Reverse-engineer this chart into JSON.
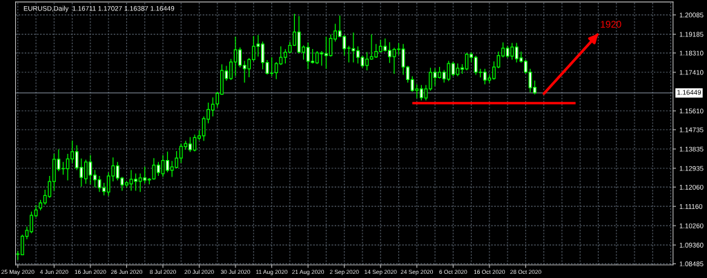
{
  "chart_data": {
    "type": "candlestick",
    "title": "EURUSD,Daily  1.16711 1.17027 1.16387 1.16449",
    "categories": [
      "25 May 2020",
      null,
      null,
      null,
      null,
      null,
      null,
      null,
      "4 Jun 2020",
      null,
      null,
      null,
      null,
      null,
      null,
      null,
      "16 Jun 2020",
      null,
      null,
      null,
      null,
      null,
      null,
      null,
      "26 Jun 2020",
      null,
      null,
      null,
      null,
      null,
      null,
      null,
      "8 Jul 2020",
      null,
      null,
      null,
      null,
      null,
      null,
      null,
      "20 Jul 2020",
      null,
      null,
      null,
      null,
      null,
      null,
      null,
      "30 Jul 2020",
      null,
      null,
      null,
      null,
      null,
      null,
      null,
      "11 Aug 2020",
      null,
      null,
      null,
      null,
      null,
      null,
      null,
      "21 Aug 2020",
      null,
      null,
      null,
      null,
      null,
      null,
      null,
      "2 Sep 2020",
      null,
      null,
      null,
      null,
      null,
      null,
      null,
      "14 Sep 2020",
      null,
      null,
      null,
      null,
      null,
      null,
      null,
      "24 Sep 2020",
      null,
      null,
      null,
      null,
      null,
      null,
      null,
      "6 Oct 2020",
      null,
      null,
      null,
      null,
      null,
      null,
      null,
      "16 Oct 2020",
      null,
      null,
      null,
      null,
      null,
      null,
      null,
      "28 Oct 2020",
      null,
      null,
      null,
      null,
      null,
      null,
      null,
      null,
      null,
      null,
      null,
      null,
      null,
      null,
      null,
      null,
      null,
      null,
      null,
      null,
      null,
      null,
      null,
      null,
      null,
      null,
      null,
      null,
      null,
      null,
      null,
      null
    ],
    "color": "#00ff00",
    "ohlc": [
      [
        1.0894,
        1.0909,
        1.0866,
        1.0893
      ],
      [
        1.089,
        1.0984,
        1.0888,
        1.0977
      ],
      [
        1.0976,
        1.1022,
        1.0963,
        1.1004
      ],
      [
        1.0998,
        1.1092,
        1.099,
        1.1074
      ],
      [
        1.1072,
        1.1122,
        1.1066,
        1.1099
      ],
      [
        1.1108,
        1.1146,
        1.1097,
        1.1132
      ],
      [
        1.1132,
        1.1194,
        1.1124,
        1.1167
      ],
      [
        1.1162,
        1.1258,
        1.1156,
        1.1232
      ],
      [
        1.1232,
        1.1361,
        1.1189,
        1.1336
      ],
      [
        1.1336,
        1.1382,
        1.128,
        1.1289
      ],
      [
        1.1292,
        1.1323,
        1.1264,
        1.1291
      ],
      [
        1.1291,
        1.1361,
        1.1237,
        1.1337
      ],
      [
        1.1337,
        1.1423,
        1.1318,
        1.1371
      ],
      [
        1.1371,
        1.1401,
        1.1285,
        1.1296
      ],
      [
        1.1298,
        1.1339,
        1.1208,
        1.1251
      ],
      [
        1.1245,
        1.1334,
        1.1221,
        1.1323
      ],
      [
        1.1323,
        1.1355,
        1.1219,
        1.1262
      ],
      [
        1.1262,
        1.1285,
        1.1205,
        1.124
      ],
      [
        1.124,
        1.1258,
        1.1183,
        1.1203
      ],
      [
        1.1203,
        1.1226,
        1.1167,
        1.1185
      ],
      [
        1.1183,
        1.1274,
        1.1165,
        1.1258
      ],
      [
        1.1258,
        1.1344,
        1.1232,
        1.1305
      ],
      [
        1.1305,
        1.1323,
        1.1237,
        1.1248
      ],
      [
        1.1248,
        1.1253,
        1.1189,
        1.1216
      ],
      [
        1.1216,
        1.1234,
        1.1205,
        1.1226
      ],
      [
        1.1221,
        1.1285,
        1.1189,
        1.1242
      ],
      [
        1.1242,
        1.1269,
        1.1189,
        1.1233
      ],
      [
        1.1233,
        1.1269,
        1.1183,
        1.1249
      ],
      [
        1.1249,
        1.1301,
        1.1223,
        1.1238
      ],
      [
        1.1239,
        1.1248,
        1.1219,
        1.1243
      ],
      [
        1.1244,
        1.1341,
        1.124,
        1.1308
      ],
      [
        1.1308,
        1.1323,
        1.1258,
        1.1274
      ],
      [
        1.1268,
        1.1355,
        1.1253,
        1.133
      ],
      [
        1.133,
        1.1371,
        1.1275,
        1.1284
      ],
      [
        1.1284,
        1.1328,
        1.1253,
        1.13
      ],
      [
        1.1298,
        1.1374,
        1.1294,
        1.1341
      ],
      [
        1.1341,
        1.1409,
        1.1318,
        1.1396
      ],
      [
        1.1394,
        1.1421,
        1.138,
        1.1409
      ],
      [
        1.1407,
        1.1439,
        1.137,
        1.138
      ],
      [
        1.1378,
        1.145,
        1.1372,
        1.1437
      ],
      [
        1.1434,
        1.1471,
        1.1424,
        1.1445
      ],
      [
        1.1445,
        1.1535,
        1.1421,
        1.1525
      ],
      [
        1.1522,
        1.16,
        1.1503,
        1.1568
      ],
      [
        1.1565,
        1.1624,
        1.1535,
        1.1592
      ],
      [
        1.1594,
        1.165,
        1.1578,
        1.1643
      ],
      [
        1.1639,
        1.1778,
        1.1637,
        1.175
      ],
      [
        1.1747,
        1.1771,
        1.1702,
        1.1712
      ],
      [
        1.1712,
        1.1803,
        1.1705,
        1.1789
      ],
      [
        1.1789,
        1.1907,
        1.1723,
        1.1846
      ],
      [
        1.1846,
        1.1857,
        1.1764,
        1.1774
      ],
      [
        1.1774,
        1.1794,
        1.1693,
        1.1758
      ],
      [
        1.1757,
        1.1808,
        1.1718,
        1.18
      ],
      [
        1.18,
        1.191,
        1.1792,
        1.1862
      ],
      [
        1.1873,
        1.1915,
        1.1814,
        1.1862
      ],
      [
        1.1873,
        1.1884,
        1.1755,
        1.1787
      ],
      [
        1.1787,
        1.1798,
        1.1731,
        1.1736
      ],
      [
        1.1737,
        1.1811,
        1.1723,
        1.1736
      ],
      [
        1.1739,
        1.1789,
        1.1709,
        1.1782
      ],
      [
        1.178,
        1.1862,
        1.1775,
        1.1811
      ],
      [
        1.1811,
        1.1849,
        1.1782,
        1.1835
      ],
      [
        1.1835,
        1.1884,
        1.1832,
        1.1867
      ],
      [
        1.1867,
        1.2014,
        1.1865,
        1.1929
      ],
      [
        1.1929,
        1.2003,
        1.183,
        1.1835
      ],
      [
        1.1835,
        1.1867,
        1.18,
        1.1859
      ],
      [
        1.1857,
        1.188,
        1.1755,
        1.1792
      ],
      [
        1.1792,
        1.185,
        1.1782,
        1.1787
      ],
      [
        1.1785,
        1.184,
        1.178,
        1.1832
      ],
      [
        1.1832,
        1.184,
        1.1772,
        1.1827
      ],
      [
        1.1828,
        1.1907,
        1.1757,
        1.1819
      ],
      [
        1.1819,
        1.1918,
        1.1814,
        1.1899
      ],
      [
        1.1896,
        1.1967,
        1.1884,
        1.1934
      ],
      [
        1.1934,
        1.2006,
        1.1905,
        1.1908
      ],
      [
        1.1908,
        1.1915,
        1.1819,
        1.1851
      ],
      [
        1.1854,
        1.1864,
        1.1787,
        1.1853
      ],
      [
        1.1851,
        1.1926,
        1.1787,
        1.1841
      ],
      [
        1.1841,
        1.1862,
        1.1782,
        1.1811
      ],
      [
        1.1811,
        1.1818,
        1.1762,
        1.1771
      ],
      [
        1.1773,
        1.1835,
        1.175,
        1.1803
      ],
      [
        1.1803,
        1.1918,
        1.18,
        1.1814
      ],
      [
        1.1812,
        1.1873,
        1.1809,
        1.1838
      ],
      [
        1.1838,
        1.1892,
        1.1835,
        1.1862
      ],
      [
        1.1862,
        1.1899,
        1.1838,
        1.1843
      ],
      [
        1.1843,
        1.1881,
        1.1785,
        1.1814
      ],
      [
        1.1814,
        1.1855,
        1.1734,
        1.1848
      ],
      [
        1.1848,
        1.1877,
        1.1822,
        1.1849
      ],
      [
        1.1849,
        1.1873,
        1.1729,
        1.1766
      ],
      [
        1.1766,
        1.1771,
        1.1693,
        1.1707
      ],
      [
        1.1707,
        1.1723,
        1.165,
        1.1656
      ],
      [
        1.1656,
        1.1685,
        1.1621,
        1.1664
      ],
      [
        1.1664,
        1.1682,
        1.161,
        1.1623
      ],
      [
        1.1621,
        1.1682,
        1.161,
        1.1664
      ],
      [
        1.1664,
        1.1762,
        1.1655,
        1.1741
      ],
      [
        1.1741,
        1.176,
        1.1678,
        1.1717
      ],
      [
        1.1717,
        1.1766,
        1.1712,
        1.1742
      ],
      [
        1.1742,
        1.1752,
        1.1693,
        1.171
      ],
      [
        1.1709,
        1.1794,
        1.17,
        1.1782
      ],
      [
        1.1782,
        1.179,
        1.1723,
        1.1731
      ],
      [
        1.1731,
        1.1782,
        1.1723,
        1.176
      ],
      [
        1.1762,
        1.1779,
        1.1734,
        1.1755
      ],
      [
        1.1757,
        1.1832,
        1.175,
        1.1825
      ],
      [
        1.1825,
        1.1835,
        1.1787,
        1.1811
      ],
      [
        1.1811,
        1.1818,
        1.1729,
        1.1742
      ],
      [
        1.1742,
        1.1757,
        1.1717,
        1.1741
      ],
      [
        1.1742,
        1.1757,
        1.1685,
        1.1705
      ],
      [
        1.1705,
        1.1729,
        1.1691,
        1.1714
      ],
      [
        1.1712,
        1.1792,
        1.1707,
        1.1766
      ],
      [
        1.1766,
        1.1838,
        1.176,
        1.1819
      ],
      [
        1.1817,
        1.188,
        1.181,
        1.1853
      ],
      [
        1.1853,
        1.1864,
        1.1808,
        1.1816
      ],
      [
        1.1816,
        1.1878,
        1.18,
        1.1859
      ],
      [
        1.1859,
        1.1878,
        1.1787,
        1.1804
      ],
      [
        1.1808,
        1.1838,
        1.1786,
        1.1792
      ],
      [
        1.1792,
        1.18,
        1.1735,
        1.1742
      ],
      [
        1.1742,
        1.1757,
        1.1648,
        1.1669
      ],
      [
        1.16711,
        1.17027,
        1.16387,
        1.16449
      ],
      null,
      null,
      null,
      null,
      null,
      null,
      null,
      null,
      null,
      null,
      null,
      null,
      null,
      null,
      null,
      null,
      null,
      null,
      null,
      null,
      null,
      null,
      null,
      null,
      null,
      null,
      null,
      null,
      null,
      null
    ],
    "series": [
      {
        "type": "line",
        "color": "#ff0000",
        "values": [
          null,
          null,
          null,
          null,
          null,
          null,
          null,
          null,
          null,
          null,
          null,
          null,
          null,
          null,
          null,
          null,
          null,
          null,
          null,
          null,
          null,
          null,
          null,
          null,
          null,
          null,
          null,
          null,
          null,
          null,
          null,
          null,
          null,
          null,
          null,
          null,
          null,
          null,
          null,
          null,
          null,
          null,
          null,
          null,
          null,
          null,
          null,
          null,
          null,
          null,
          null,
          null,
          null,
          null,
          null,
          null,
          null,
          null,
          null,
          null,
          null,
          null,
          null,
          null,
          null,
          null,
          null,
          null,
          null,
          null,
          null,
          null,
          null,
          null,
          null,
          null,
          null,
          null,
          null,
          null,
          null,
          null,
          null,
          null,
          null,
          null,
          null,
          1.1597,
          null,
          null,
          null,
          null,
          null,
          null,
          null,
          null,
          null,
          null,
          null,
          null,
          null,
          null,
          null,
          null,
          null,
          null,
          null,
          null,
          null,
          null,
          null,
          null,
          null,
          null,
          null,
          null,
          null,
          null,
          null,
          null,
          null,
          null,
          null,
          1.1597,
          null,
          null,
          null,
          null,
          null,
          null,
          null,
          null,
          null,
          null,
          null,
          null,
          null,
          null,
          null,
          null,
          null,
          null,
          null,
          null,
          null
        ]
      },
      {
        "type": "line",
        "color": "#ff0000",
        "values": [
          null,
          null,
          null,
          null,
          null,
          null,
          null,
          null,
          null,
          null,
          null,
          null,
          null,
          null,
          null,
          null,
          null,
          null,
          null,
          null,
          null,
          null,
          null,
          null,
          null,
          null,
          null,
          null,
          null,
          null,
          null,
          null,
          null,
          null,
          null,
          null,
          null,
          null,
          null,
          null,
          null,
          null,
          null,
          null,
          null,
          null,
          null,
          null,
          null,
          null,
          null,
          null,
          null,
          null,
          null,
          null,
          null,
          null,
          null,
          null,
          null,
          null,
          null,
          null,
          null,
          null,
          null,
          null,
          null,
          null,
          null,
          null,
          null,
          null,
          null,
          null,
          null,
          null,
          null,
          null,
          null,
          null,
          null,
          null,
          null,
          null,
          null,
          null,
          null,
          null,
          null,
          null,
          null,
          null,
          null,
          null,
          null,
          null,
          null,
          null,
          null,
          null,
          null,
          null,
          null,
          null,
          null,
          null,
          null,
          null,
          null,
          null,
          null,
          null,
          null,
          null,
          1.1641,
          null,
          null,
          null,
          null,
          null,
          null,
          null,
          null,
          null,
          null,
          null,
          1.1921,
          null,
          null,
          null,
          null,
          null,
          null,
          null,
          null,
          null,
          null,
          null,
          null,
          null,
          null,
          null,
          null
        ]
      }
    ],
    "annotations": [
      "1920"
    ],
    "ref_lines": [
      {
        "axis": "y",
        "value": 1.16449,
        "label": "1.16449",
        "color": "#8a96a4"
      }
    ],
    "ylim": [
      1.0843,
      1.2069
    ],
    "yticks": [
      1.08485,
      {
        "value": 1.0936,
        "label": "1.09360"
      },
      {
        "value": 1.1026,
        "label": "1.10260"
      },
      {
        "value": 1.1116,
        "label": "1.11160"
      },
      {
        "value": 1.1206,
        "label": "1.12060"
      },
      1.12935,
      1.13835,
      1.14735,
      {
        "value": 1.1561,
        "label": "1.15610"
      },
      {
        "value": 1.1741,
        "label": "1.17410"
      },
      {
        "value": 1.1831,
        "label": "1.18310"
      },
      1.19185,
      1.20085
    ],
    "grid": true
  }
}
